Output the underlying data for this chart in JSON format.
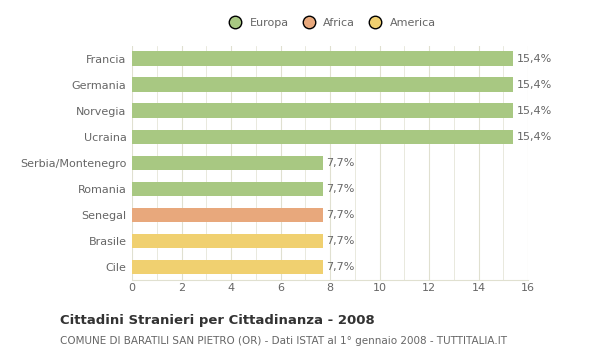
{
  "categories": [
    "Francia",
    "Germania",
    "Norvegia",
    "Ucraina",
    "Serbia/Montenegro",
    "Romania",
    "Senegal",
    "Brasile",
    "Cile"
  ],
  "values": [
    15.4,
    15.4,
    15.4,
    15.4,
    7.7,
    7.7,
    7.7,
    7.7,
    7.7
  ],
  "labels": [
    "15,4%",
    "15,4%",
    "15,4%",
    "15,4%",
    "7,7%",
    "7,7%",
    "7,7%",
    "7,7%",
    "7,7%"
  ],
  "bar_colors": [
    "#a8c882",
    "#a8c882",
    "#a8c882",
    "#a8c882",
    "#a8c882",
    "#a8c882",
    "#e8a87c",
    "#f0d070",
    "#f0d070"
  ],
  "legend_labels": [
    "Europa",
    "Africa",
    "America"
  ],
  "legend_colors": [
    "#a8c882",
    "#e8a87c",
    "#f0d070"
  ],
  "xlim": [
    0,
    16
  ],
  "xticks": [
    0,
    2,
    4,
    6,
    8,
    10,
    12,
    14,
    16
  ],
  "title_bold": "Cittadini Stranieri per Cittadinanza - 2008",
  "subtitle": "COMUNE DI BARATILI SAN PIETRO (OR) - Dati ISTAT al 1° gennaio 2008 - TUTTITALIA.IT",
  "plot_bg_color": "#ffffff",
  "fig_bg_color": "#ffffff",
  "grid_color": "#e0e0d0",
  "text_color": "#666666",
  "label_fontsize": 8,
  "tick_fontsize": 8,
  "title_fontsize": 9.5,
  "subtitle_fontsize": 7.5,
  "bar_height": 0.55
}
